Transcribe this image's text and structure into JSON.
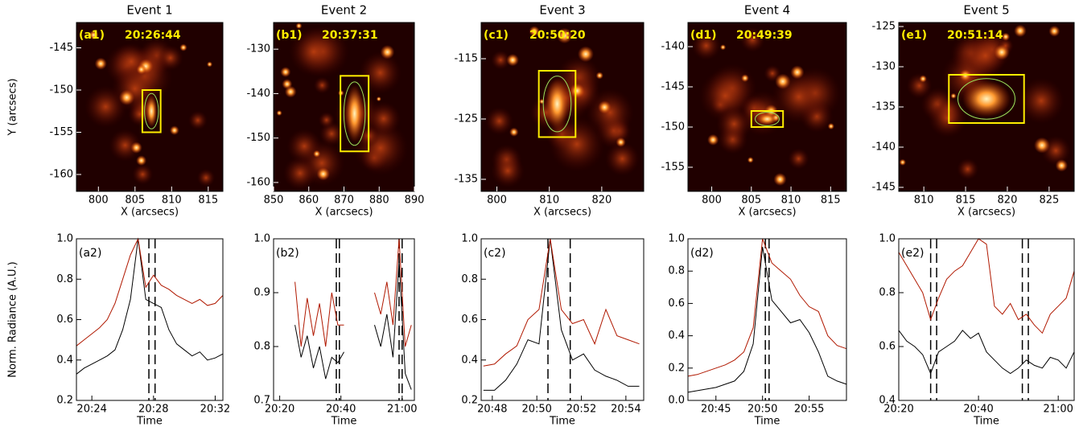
{
  "chart_data": [
    {
      "type": "image",
      "title": "Event 1",
      "panel_label": "(a1)",
      "time_label": "20:26:44",
      "xlabel": "X (arcsecs)",
      "ylabel": "Y (arcsecs)",
      "xlim": [
        797,
        817
      ],
      "ylim": [
        -162,
        -142
      ],
      "xticks": [
        800,
        805,
        810,
        815
      ],
      "yticks": [
        -145,
        -150,
        -155,
        -160
      ],
      "box": {
        "x": [
          806,
          808.5
        ],
        "y": [
          -155,
          -150
        ]
      },
      "box_color": "#ffee00"
    },
    {
      "type": "image",
      "title": "Event 2",
      "panel_label": "(b1)",
      "time_label": "20:37:31",
      "xlabel": "X (arcsecs)",
      "xlim": [
        850,
        890
      ],
      "ylim": [
        -162,
        -124
      ],
      "xticks": [
        850,
        860,
        870,
        880,
        890
      ],
      "yticks": [
        -130,
        -140,
        -150,
        -160
      ],
      "box": {
        "x": [
          869,
          877
        ],
        "y": [
          -153,
          -136
        ]
      },
      "box_color": "#ffee00"
    },
    {
      "type": "image",
      "title": "Event 3",
      "panel_label": "(c1)",
      "time_label": "20:50:20",
      "xlabel": "X (arcsecs)",
      "xlim": [
        797,
        828
      ],
      "ylim": [
        -137,
        -109
      ],
      "xticks": [
        800,
        810,
        820
      ],
      "yticks": [
        -115,
        -125,
        -135
      ],
      "box": {
        "x": [
          808,
          815
        ],
        "y": [
          -128,
          -117
        ]
      },
      "box_color": "#ffee00"
    },
    {
      "type": "image",
      "title": "Event 4",
      "panel_label": "(d1)",
      "time_label": "20:49:39",
      "xlabel": "X (arcsecs)",
      "xlim": [
        797,
        817
      ],
      "ylim": [
        -158,
        -137
      ],
      "xticks": [
        800,
        805,
        810,
        815
      ],
      "yticks": [
        -140,
        -145,
        -150,
        -155
      ],
      "box": {
        "x": [
          805,
          809
        ],
        "y": [
          -150,
          -148
        ]
      },
      "box_color": "#ffee00"
    },
    {
      "type": "image",
      "title": "Event 5",
      "panel_label": "(e1)",
      "time_label": "20:51:14",
      "xlabel": "X (arcsecs)",
      "xlim": [
        807,
        828
      ],
      "ylim": [
        -145.5,
        -124.5
      ],
      "xticks": [
        810,
        815,
        820,
        825
      ],
      "yticks": [
        -125,
        -130,
        -135,
        -140,
        -145
      ],
      "box": {
        "x": [
          813,
          822
        ],
        "y": [
          -137,
          -131
        ]
      },
      "box_color": "#ffee00"
    },
    {
      "type": "line",
      "panel_label": "(a2)",
      "xlabel": "Time",
      "ylabel": "Norm. Radiance (A.U.)",
      "xlim": [
        1223,
        1232.5
      ],
      "ylim": [
        0.2,
        1.0
      ],
      "xticks": [
        {
          "value": 1224,
          "label": "20:24"
        },
        {
          "value": 1228,
          "label": "20:28"
        },
        {
          "value": 1232,
          "label": "20:32"
        }
      ],
      "yticks": [
        0.2,
        0.4,
        0.6,
        0.8,
        {
          "value": 1,
          "label": "1.0"
        }
      ],
      "vlines": [
        1227.7,
        1228.1
      ],
      "x": [
        1223,
        1223.5,
        1224,
        1224.5,
        1225,
        1225.5,
        1226,
        1226.5,
        1227,
        1227.5,
        1228,
        1228.5,
        1229,
        1229.5,
        1230,
        1230.5,
        1231,
        1231.5,
        1232,
        1232.5
      ],
      "series": [
        {
          "color": "#000000",
          "values": [
            0.33,
            0.36,
            0.38,
            0.4,
            0.42,
            0.45,
            0.55,
            0.7,
            1.0,
            0.7,
            0.68,
            0.66,
            0.55,
            0.48,
            0.45,
            0.42,
            0.44,
            0.4,
            0.41,
            0.43
          ]
        },
        {
          "color": "#b01800",
          "values": [
            0.47,
            0.5,
            0.53,
            0.56,
            0.6,
            0.68,
            0.8,
            0.92,
            1.0,
            0.76,
            0.82,
            0.77,
            0.75,
            0.72,
            0.7,
            0.68,
            0.7,
            0.67,
            0.68,
            0.72
          ]
        }
      ]
    },
    {
      "type": "line",
      "panel_label": "(b2)",
      "xlabel": "Time",
      "xlim": [
        1218,
        1264
      ],
      "ylim": [
        0.7,
        1.0
      ],
      "xticks": [
        {
          "value": 1220,
          "label": "20:20"
        },
        {
          "value": 1240,
          "label": "20:40"
        },
        {
          "value": 1260,
          "label": "21:00"
        }
      ],
      "yticks": [
        0.7,
        0.8,
        0.9,
        {
          "value": 1,
          "label": "1.0"
        }
      ],
      "vlines": [
        1238.5,
        1239.5,
        1259,
        1260
      ],
      "x": [
        1225,
        1227,
        1229,
        1231,
        1233,
        1235,
        1237,
        1239,
        1241,
        1243,
        1245,
        1247,
        1249,
        1251,
        1253,
        1255,
        1257,
        1259,
        1261,
        1263
      ],
      "series": [
        {
          "color": "#000000",
          "values": [
            0.84,
            0.78,
            0.82,
            0.76,
            0.8,
            0.74,
            0.78,
            0.77,
            0.79,
            null,
            null,
            null,
            null,
            0.84,
            0.8,
            0.86,
            0.78,
            0.96,
            0.75,
            0.72
          ]
        },
        {
          "color": "#b01800",
          "values": [
            0.92,
            0.8,
            0.89,
            0.82,
            0.88,
            0.8,
            0.9,
            0.84,
            0.84,
            null,
            null,
            null,
            null,
            0.9,
            0.86,
            0.92,
            0.84,
            1.0,
            0.8,
            0.84
          ]
        }
      ]
    },
    {
      "type": "line",
      "panel_label": "(c2)",
      "xlabel": "Time",
      "xlim": [
        1247.5,
        1254.8
      ],
      "ylim": [
        0.2,
        1.0
      ],
      "xticks": [
        {
          "value": 1248,
          "label": "20:48"
        },
        {
          "value": 1250,
          "label": "20:50"
        },
        {
          "value": 1252,
          "label": "20:52"
        },
        {
          "value": 1254,
          "label": "20:54"
        }
      ],
      "yticks": [
        0.2,
        0.4,
        0.6,
        0.8,
        {
          "value": 1,
          "label": "1.0"
        }
      ],
      "vlines": [
        1250.5,
        1251.5
      ],
      "x": [
        1247.6,
        1248.1,
        1248.6,
        1249.1,
        1249.6,
        1250.1,
        1250.6,
        1251.1,
        1251.6,
        1252.1,
        1252.6,
        1253.1,
        1253.6,
        1254.1,
        1254.6
      ],
      "series": [
        {
          "color": "#000000",
          "values": [
            0.25,
            0.25,
            0.3,
            0.38,
            0.5,
            0.48,
            1.0,
            0.55,
            0.4,
            0.43,
            0.35,
            0.32,
            0.3,
            0.27,
            0.27
          ]
        },
        {
          "color": "#b01800",
          "values": [
            0.37,
            0.38,
            0.43,
            0.47,
            0.6,
            0.65,
            1.0,
            0.65,
            0.58,
            0.6,
            0.48,
            0.65,
            0.52,
            0.5,
            0.48
          ]
        }
      ]
    },
    {
      "type": "line",
      "panel_label": "(d2)",
      "xlabel": "Time",
      "xlim": [
        1242,
        1259
      ],
      "ylim": [
        0,
        1.0
      ],
      "xticks": [
        {
          "value": 1245,
          "label": "20:45"
        },
        {
          "value": 1250,
          "label": "20:50"
        },
        {
          "value": 1255,
          "label": "20:55"
        }
      ],
      "yticks": [
        {
          "value": 0,
          "label": "0.0"
        },
        0.2,
        0.4,
        0.6,
        0.8,
        {
          "value": 1,
          "label": "1.0"
        }
      ],
      "vlines": [
        1250.3,
        1250.7
      ],
      "x": [
        1242,
        1243,
        1244,
        1245,
        1246,
        1247,
        1248,
        1249,
        1250,
        1251,
        1252,
        1253,
        1254,
        1255,
        1256,
        1257,
        1258,
        1259
      ],
      "series": [
        {
          "color": "#000000",
          "values": [
            0.05,
            0.06,
            0.07,
            0.08,
            0.1,
            0.12,
            0.18,
            0.35,
            0.95,
            0.62,
            0.55,
            0.48,
            0.5,
            0.42,
            0.3,
            0.15,
            0.12,
            0.1
          ]
        },
        {
          "color": "#b01800",
          "values": [
            0.15,
            0.16,
            0.18,
            0.2,
            0.22,
            0.25,
            0.3,
            0.45,
            1.0,
            0.85,
            0.8,
            0.75,
            0.65,
            0.58,
            0.55,
            0.4,
            0.34,
            0.32
          ]
        }
      ]
    },
    {
      "type": "line",
      "panel_label": "(e2)",
      "xlabel": "Time",
      "xlim": [
        1220,
        1264
      ],
      "ylim": [
        0.4,
        1.0
      ],
      "xticks": [
        {
          "value": 1220,
          "label": "20:20"
        },
        {
          "value": 1240,
          "label": "20:40"
        },
        {
          "value": 1260,
          "label": "21:00"
        }
      ],
      "yticks": [
        0.4,
        0.6,
        0.8,
        {
          "value": 1,
          "label": "1.0"
        }
      ],
      "vlines": [
        1228,
        1229.5,
        1251,
        1252.5
      ],
      "x": [
        1220,
        1222,
        1224,
        1226,
        1228,
        1230,
        1232,
        1234,
        1236,
        1238,
        1240,
        1242,
        1244,
        1246,
        1248,
        1250,
        1252,
        1254,
        1256,
        1258,
        1260,
        1262,
        1264
      ],
      "series": [
        {
          "color": "#000000",
          "values": [
            0.66,
            0.62,
            0.6,
            0.57,
            0.5,
            0.58,
            0.6,
            0.62,
            0.66,
            0.63,
            0.65,
            0.58,
            0.55,
            0.52,
            0.5,
            0.52,
            0.55,
            0.53,
            0.52,
            0.56,
            0.55,
            0.52,
            0.58
          ]
        },
        {
          "color": "#b01800",
          "values": [
            0.95,
            0.9,
            0.85,
            0.8,
            0.7,
            0.78,
            0.85,
            0.88,
            0.9,
            0.95,
            1.0,
            0.98,
            0.75,
            0.72,
            0.76,
            0.7,
            0.72,
            0.68,
            0.65,
            0.72,
            0.75,
            0.78,
            0.88
          ]
        }
      ]
    }
  ]
}
